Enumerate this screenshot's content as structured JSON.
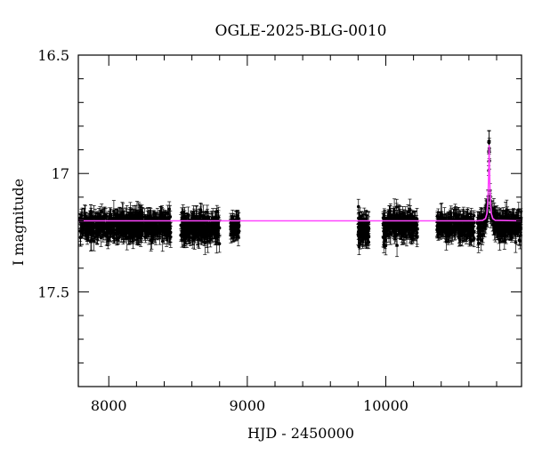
{
  "chart_data": {
    "type": "scatter",
    "title": "OGLE-2025-BLG-0010",
    "xlabel": "HJD - 2450000",
    "ylabel": "I magnitude",
    "xlim": [
      7780,
      10980
    ],
    "ylim": [
      17.9,
      16.5
    ],
    "y_inverted": true,
    "grid": false,
    "x_major_ticks": [
      8000,
      9000,
      10000
    ],
    "x_tick_labels": [
      "8000",
      "9000",
      "10000"
    ],
    "y_major_ticks": [
      16.5,
      17,
      17.5
    ],
    "y_tick_labels": [
      "16.5",
      "17",
      "17.5"
    ],
    "colors": {
      "points": "#000000",
      "model": "#ff44ff"
    },
    "observing_seasons": [
      {
        "start": 7790,
        "end": 8250,
        "mean_mag": 17.22,
        "scatter": 0.025
      },
      {
        "start": 8150,
        "end": 8450,
        "mean_mag": 17.22,
        "scatter": 0.025
      },
      {
        "start": 8520,
        "end": 8800,
        "mean_mag": 17.23,
        "scatter": 0.028
      },
      {
        "start": 8880,
        "end": 8940,
        "mean_mag": 17.22,
        "scatter": 0.02
      },
      {
        "start": 9800,
        "end": 9880,
        "mean_mag": 17.24,
        "scatter": 0.03
      },
      {
        "start": 9980,
        "end": 10230,
        "mean_mag": 17.22,
        "scatter": 0.025
      },
      {
        "start": 10370,
        "end": 10640,
        "mean_mag": 17.22,
        "scatter": 0.025
      },
      {
        "start": 10660,
        "end": 10980,
        "mean_mag": 17.22,
        "scatter": 0.025
      }
    ],
    "event": {
      "t0": 10746,
      "peak_mag": 16.88,
      "baseline_mag": 17.2,
      "tE": 14
    },
    "model_curve": {
      "x": [
        7780,
        10660,
        10700,
        10720,
        10730,
        10736,
        10740,
        10743,
        10746,
        10749,
        10752,
        10756,
        10762,
        10772,
        10790,
        10980
      ],
      "y": [
        17.2,
        17.2,
        17.198,
        17.19,
        17.17,
        17.12,
        17.06,
        16.98,
        16.88,
        16.98,
        17.06,
        17.12,
        17.17,
        17.19,
        17.198,
        17.2
      ]
    }
  }
}
